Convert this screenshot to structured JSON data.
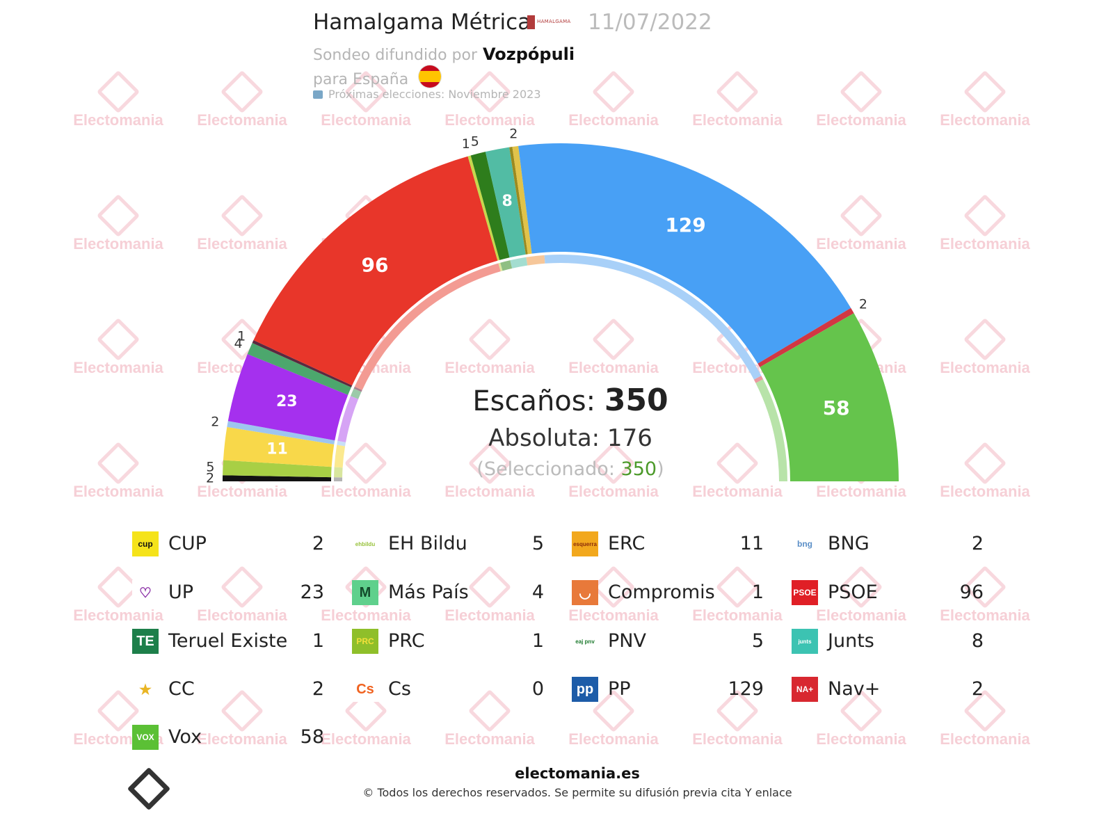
{
  "header": {
    "pollster": "Hamalgama Métrica",
    "pollster_logo_text": "HAMALGAMA",
    "date": "11/07/2022",
    "sponsor_prefix": "Sondeo difundido por",
    "sponsor": "Vozpópuli",
    "region": "para España",
    "next_elections": "Próximas elecciones: Noviembre 2023"
  },
  "watermark_text": "Electomania",
  "summary": {
    "seats_label": "Escaños:",
    "seats_total": "350",
    "majority_label": "Absoluta: 176",
    "selected_prefix": "(Seleccionado:",
    "selected_value": "350",
    "selected_suffix": ")"
  },
  "chart_data": {
    "type": "hemicycle",
    "total": 350,
    "majority": 176,
    "seats": [
      {
        "party": "CUP",
        "seats": 2,
        "color": "#111111",
        "label": "2"
      },
      {
        "party": "EH Bildu",
        "seats": 5,
        "color": "#a8cf45",
        "label": "5"
      },
      {
        "party": "ERC",
        "seats": 11,
        "color": "#f8d84a",
        "label": "11"
      },
      {
        "party": "BNG",
        "seats": 2,
        "color": "#9ec5ef",
        "label": "2"
      },
      {
        "party": "UP",
        "seats": 23,
        "color": "#a530ee",
        "label": "23"
      },
      {
        "party": "Más País",
        "seats": 4,
        "color": "#4ca76d",
        "label": "4"
      },
      {
        "party": "Compromis",
        "seats": 1,
        "color": "#5a2a40",
        "label": "1"
      },
      {
        "party": "PSOE",
        "seats": 96,
        "color": "#e8362a",
        "label": "96"
      },
      {
        "party": "Teruel Existe",
        "seats": 1,
        "color": "#c6d84c",
        "label": "1"
      },
      {
        "party": "PNV",
        "seats": 5,
        "color": "#2e7d1c",
        "label": "5"
      },
      {
        "party": "Junts",
        "seats": 8,
        "color": "#52bca4",
        "label": "8"
      },
      {
        "party": "PRC",
        "seats": 1,
        "color": "#9b8a1f",
        "label": ""
      },
      {
        "party": "CC",
        "seats": 2,
        "color": "#e1c34a",
        "label": "2"
      },
      {
        "party": "PP",
        "seats": 129,
        "color": "#48a0f5",
        "label": "129"
      },
      {
        "party": "Nav+",
        "seats": 2,
        "color": "#d13743",
        "label": "2"
      },
      {
        "party": "Vox",
        "seats": 58,
        "color": "#65c44c",
        "label": "58"
      }
    ],
    "inner_ring": [
      {
        "seats": 2,
        "color": "#b4b4b4"
      },
      {
        "seats": 5,
        "color": "#d8e69e"
      },
      {
        "seats": 11,
        "color": "#fbe98f"
      },
      {
        "seats": 2,
        "color": "#c8dff7"
      },
      {
        "seats": 23,
        "color": "#d6a4f5"
      },
      {
        "seats": 4,
        "color": "#9bc9a9"
      },
      {
        "seats": 1,
        "color": "#a98090"
      },
      {
        "seats": 96,
        "color": "#f39b93"
      },
      {
        "seats": 1,
        "color": "#dfe89f"
      },
      {
        "seats": 5,
        "color": "#8fbf83"
      },
      {
        "seats": 8,
        "color": "#a3ddd0"
      },
      {
        "seats": 9,
        "color": "#f6c79a"
      },
      {
        "seats": 129,
        "color": "#a8d0f8"
      },
      {
        "seats": 2,
        "color": "#ea9aa0"
      },
      {
        "seats": 52,
        "color": "#b8e3a9"
      }
    ]
  },
  "legend": [
    {
      "name": "CUP",
      "seats": "2",
      "logo_text": "cup",
      "logo_bg": "#f5e31a",
      "logo_fg": "#111111"
    },
    {
      "name": "EH Bildu",
      "seats": "5",
      "logo_text": "ehbildu",
      "logo_bg": "#ffffff",
      "logo_fg": "#98c23c"
    },
    {
      "name": "ERC",
      "seats": "11",
      "logo_text": "esquerra",
      "logo_bg": "#f2a81d",
      "logo_fg": "#8a2b0a"
    },
    {
      "name": "BNG",
      "seats": "2",
      "logo_text": "bng",
      "logo_bg": "#ffffff",
      "logo_fg": "#5b8fc7"
    },
    {
      "name": "UP",
      "seats": "23",
      "logo_text": "♡",
      "logo_bg": "#ffffff",
      "logo_fg": "#8a2fa6"
    },
    {
      "name": "Más País",
      "seats": "4",
      "logo_text": "M",
      "logo_bg": "#5fd08c",
      "logo_fg": "#134a2a"
    },
    {
      "name": "Compromis",
      "seats": "1",
      "logo_text": "◡",
      "logo_bg": "#e8793a",
      "logo_fg": "#ffffff"
    },
    {
      "name": "PSOE",
      "seats": "96",
      "logo_text": "PSOE",
      "logo_bg": "#e01f26",
      "logo_fg": "#ffffff"
    },
    {
      "name": "Teruel Existe",
      "seats": "1",
      "logo_text": "TE",
      "logo_bg": "#1d7f4a",
      "logo_fg": "#ffffff"
    },
    {
      "name": "PRC",
      "seats": "1",
      "logo_text": "PRC",
      "logo_bg": "#8fbf2a",
      "logo_fg": "#f4e03a"
    },
    {
      "name": "PNV",
      "seats": "5",
      "logo_text": "eaj pnv",
      "logo_bg": "#ffffff",
      "logo_fg": "#1d7a2e"
    },
    {
      "name": "Junts",
      "seats": "8",
      "logo_text": "junts",
      "logo_bg": "#3cc3b2",
      "logo_fg": "#ffffff"
    },
    {
      "name": "CC",
      "seats": "2",
      "logo_text": "★",
      "logo_bg": "#ffffff",
      "logo_fg": "#e9b524"
    },
    {
      "name": "Cs",
      "seats": "0",
      "logo_text": "Cs",
      "logo_bg": "#ffffff",
      "logo_fg": "#f0621f"
    },
    {
      "name": "PP",
      "seats": "129",
      "logo_text": "pp",
      "logo_bg": "#1d5ca8",
      "logo_fg": "#ffffff"
    },
    {
      "name": "Nav+",
      "seats": "2",
      "logo_text": "NA+",
      "logo_bg": "#d82830",
      "logo_fg": "#ffffff"
    },
    {
      "name": "Vox",
      "seats": "58",
      "logo_text": "VOX",
      "logo_bg": "#5bc035",
      "logo_fg": "#ffffff"
    }
  ],
  "footer": {
    "site": "electomania.es",
    "rights": "© Todos los derechos reservados. Se permite su difusión previa cita Y enlace"
  }
}
